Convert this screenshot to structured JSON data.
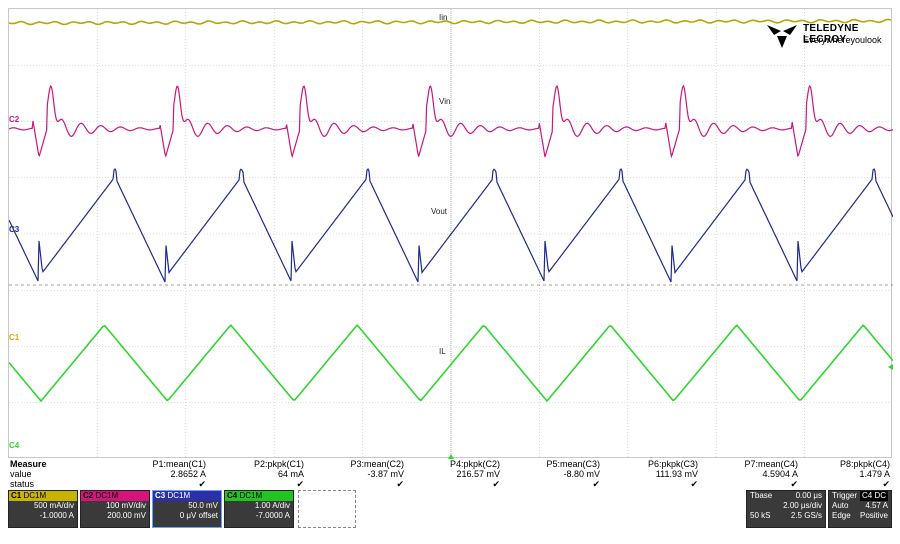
{
  "traces": {
    "iin_label": "Iin",
    "vin_label": "Vin",
    "vout_label": "Vout",
    "il_label": "IL",
    "c1_marker": "C1",
    "c2_marker": "C2",
    "c3_marker": "C3",
    "c4_marker": "C4"
  },
  "logo": {
    "brand": "TELEDYNE LECROY",
    "tagline": "Everywhereyoulook"
  },
  "measure": {
    "row_titles": [
      "Measure",
      "value",
      "status"
    ],
    "params": [
      {
        "name": "P1:mean(C1)",
        "value": "2.8652 A",
        "status": "✔"
      },
      {
        "name": "P2:pkpk(C1)",
        "value": "64 mA",
        "status": "✔"
      },
      {
        "name": "P3:mean(C2)",
        "value": "-3.87 mV",
        "status": "✔"
      },
      {
        "name": "P4:pkpk(C2)",
        "value": "216.57 mV",
        "status": "✔"
      },
      {
        "name": "P5:mean(C3)",
        "value": "-8.80 mV",
        "status": "✔"
      },
      {
        "name": "P6:pkpk(C3)",
        "value": "111.93 mV",
        "status": "✔"
      },
      {
        "name": "P7:mean(C4)",
        "value": "4.5904 A",
        "status": "✔"
      },
      {
        "name": "P8:pkpk(C4)",
        "value": "1.479 A",
        "status": "✔"
      }
    ]
  },
  "channels": [
    {
      "id": "C1",
      "coupling": "DC1M",
      "tag": "DC",
      "vdiv": "500 mA/div",
      "offset": "-1.0000 A",
      "color": "#c8b400"
    },
    {
      "id": "C2",
      "coupling": "DC1M",
      "tag": "DC",
      "vdiv": "100 mV/div",
      "offset": "200.00 mV",
      "color": "#d4147a"
    },
    {
      "id": "C3",
      "coupling": "DC1M",
      "tag": "DC",
      "vdiv": "50.0 mV",
      "offset": "0 μV offset",
      "color": "#2b2fa8"
    },
    {
      "id": "C4",
      "coupling": "DC1M",
      "tag": "DC",
      "vdiv": "1.00 A/div",
      "offset": "-7.0000 A",
      "color": "#22c422"
    }
  ],
  "timebase": {
    "title": "Tbase",
    "delay": "0.00 μs",
    "tdiv": "2.00 μs/div",
    "samples": "50 kS",
    "rate": "2.5 GS/s"
  },
  "trigger": {
    "title": "Trigger",
    "ch": "C4",
    "coupling": "DC",
    "mode": "Auto",
    "level": "4.57 A",
    "type": "Edge",
    "slope": "Positive"
  },
  "colors": {
    "grid": "#bdbdbd",
    "c1": "#b5a800",
    "c2": "#c8187a",
    "c3": "#1e2a8a",
    "c4": "#2ed62e"
  }
}
